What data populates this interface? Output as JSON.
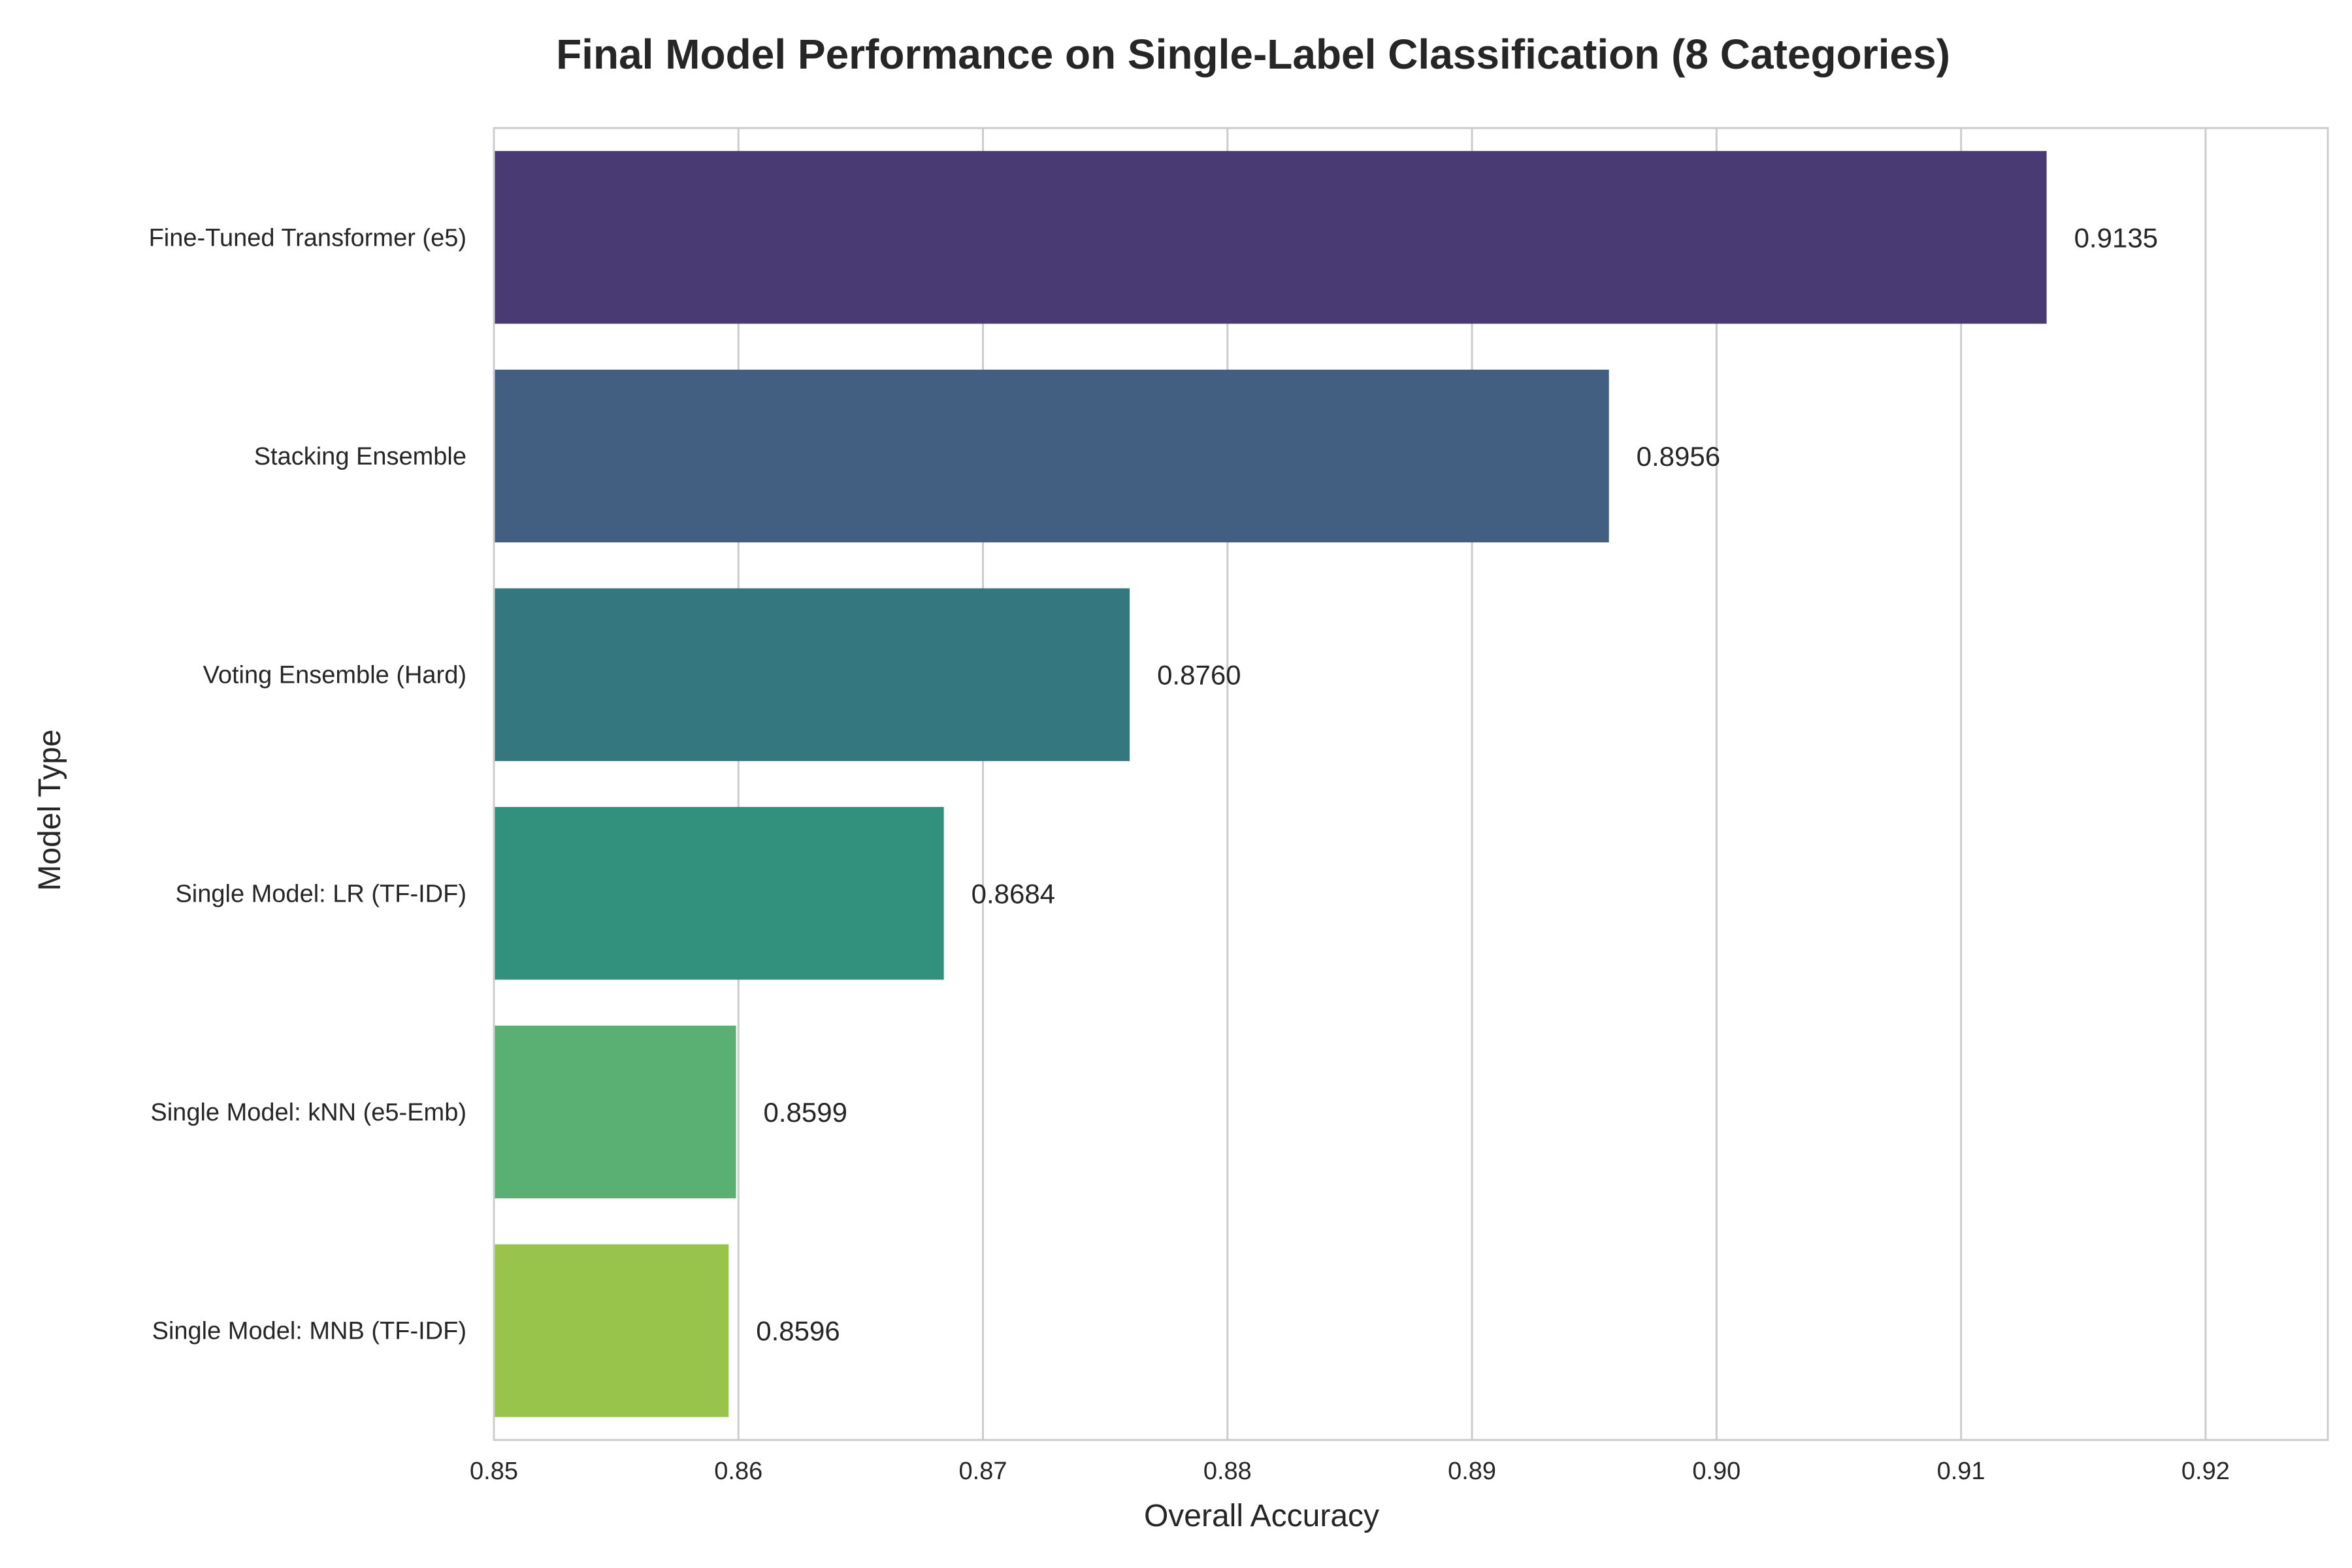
{
  "chart_data": {
    "type": "bar",
    "orientation": "horizontal",
    "title": "Final Model Performance on Single-Label Classification (8 Categories)",
    "xlabel": "Overall Accuracy",
    "ylabel": "Model Type",
    "xlim": [
      0.85,
      0.925
    ],
    "x_ticks": [
      "0.85",
      "0.86",
      "0.87",
      "0.88",
      "0.89",
      "0.90",
      "0.91",
      "0.92"
    ],
    "x_tick_values": [
      0.85,
      0.86,
      0.87,
      0.88,
      0.89,
      0.9,
      0.91,
      0.92
    ],
    "grid": true,
    "categories": [
      "Fine-Tuned Transformer (e5)",
      "Stacking Ensemble",
      "Voting Ensemble (Hard)",
      "Single Model: LR (TF-IDF)",
      "Single Model: kNN (e5-Emb)",
      "Single Model: MNB (TF-IDF)"
    ],
    "values": [
      0.9135,
      0.8956,
      0.876,
      0.8684,
      0.8599,
      0.8596
    ],
    "value_labels": [
      "0.9135",
      "0.8956",
      "0.8760",
      "0.8684",
      "0.8599",
      "0.8596"
    ],
    "colors": [
      "#4a3a73",
      "#425f82",
      "#35777f",
      "#31917c",
      "#5aaf72",
      "#98c44c"
    ]
  }
}
